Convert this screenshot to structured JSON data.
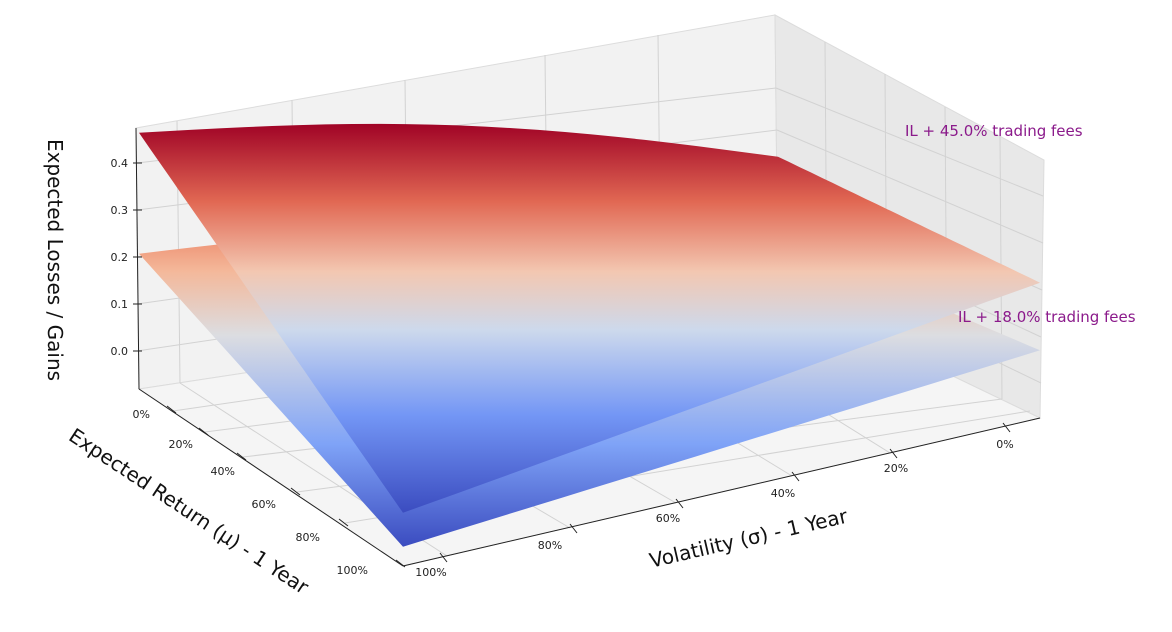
{
  "chart_data": {
    "type": "surface3d",
    "title": "",
    "xlabel": "Volatility (σ) - 1 Year",
    "ylabel": "Expected Return (μ) - 1 Year",
    "zlabel": "Expected Losses / Gains",
    "x_ticks": [
      "0%",
      "20%",
      "40%",
      "60%",
      "80%",
      "100%"
    ],
    "y_ticks": [
      "0%",
      "20%",
      "40%",
      "60%",
      "80%",
      "100%"
    ],
    "z_ticks": [
      "0.0",
      "0.1",
      "0.2",
      "0.3",
      "0.4"
    ],
    "x_range": [
      0,
      1
    ],
    "y_range": [
      0,
      1
    ],
    "zlim": [
      -0.08,
      0.46
    ],
    "grid": true,
    "colormap": "coolwarm",
    "colormap_range": [
      -0.05,
      0.45
    ],
    "annotation_color": "#8b1a8b",
    "series": [
      {
        "name": "IL + 18.0% trading fees",
        "fee": 0.18,
        "corners": {
          "sigma0_mu0": 0.03,
          "sigma1_mu0": 0.2,
          "sigma0_mu1": 0.06,
          "sigma1_mu1": -0.04
        }
      },
      {
        "name": "IL + 45.0% trading fees",
        "fee": 0.45,
        "corners": {
          "sigma0_mu0": 0.2,
          "sigma1_mu0": 0.45,
          "sigma0_mu1": 0.2,
          "sigma1_mu1": 0.03
        }
      }
    ]
  }
}
